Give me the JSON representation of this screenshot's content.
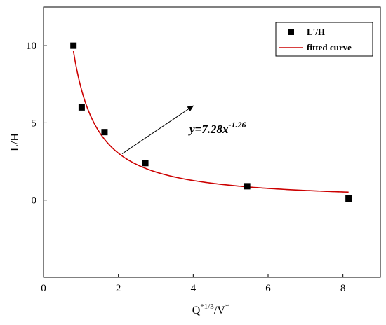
{
  "chart_data": {
    "type": "scatter",
    "xlabel": "Q",
    "xlabel_sup": "*1/3",
    "xlabel_rest": "/V",
    "xlabel_sup2": "*",
    "ylabel": "L/H",
    "xlim": [
      0,
      9
    ],
    "ylim": [
      -5,
      12.5
    ],
    "xticks": [
      0,
      2,
      4,
      6,
      8
    ],
    "yticks": [
      0,
      5,
      10
    ],
    "grid": false,
    "legend_position": "top-right",
    "series": [
      {
        "name": "L'/H",
        "kind": "scatter",
        "marker": "square",
        "color": "#000000",
        "x": [
          0.8,
          1.02,
          1.63,
          2.72,
          5.44,
          8.15
        ],
        "y": [
          10.0,
          6.0,
          4.4,
          2.4,
          0.9,
          0.1
        ]
      },
      {
        "name": "fitted curve",
        "kind": "line",
        "color": "#cc0000",
        "function": {
          "a": 7.28,
          "b": -1.26
        },
        "x_range": [
          0.8,
          8.15
        ]
      }
    ],
    "annotation": {
      "y_prefix": "y",
      "equals_coeff": "=7.28",
      "x_var": "x",
      "exponent": "-1.26",
      "arrow_from": [
        2.1,
        3.0
      ],
      "arrow_to": [
        4.0,
        6.1
      ]
    }
  }
}
